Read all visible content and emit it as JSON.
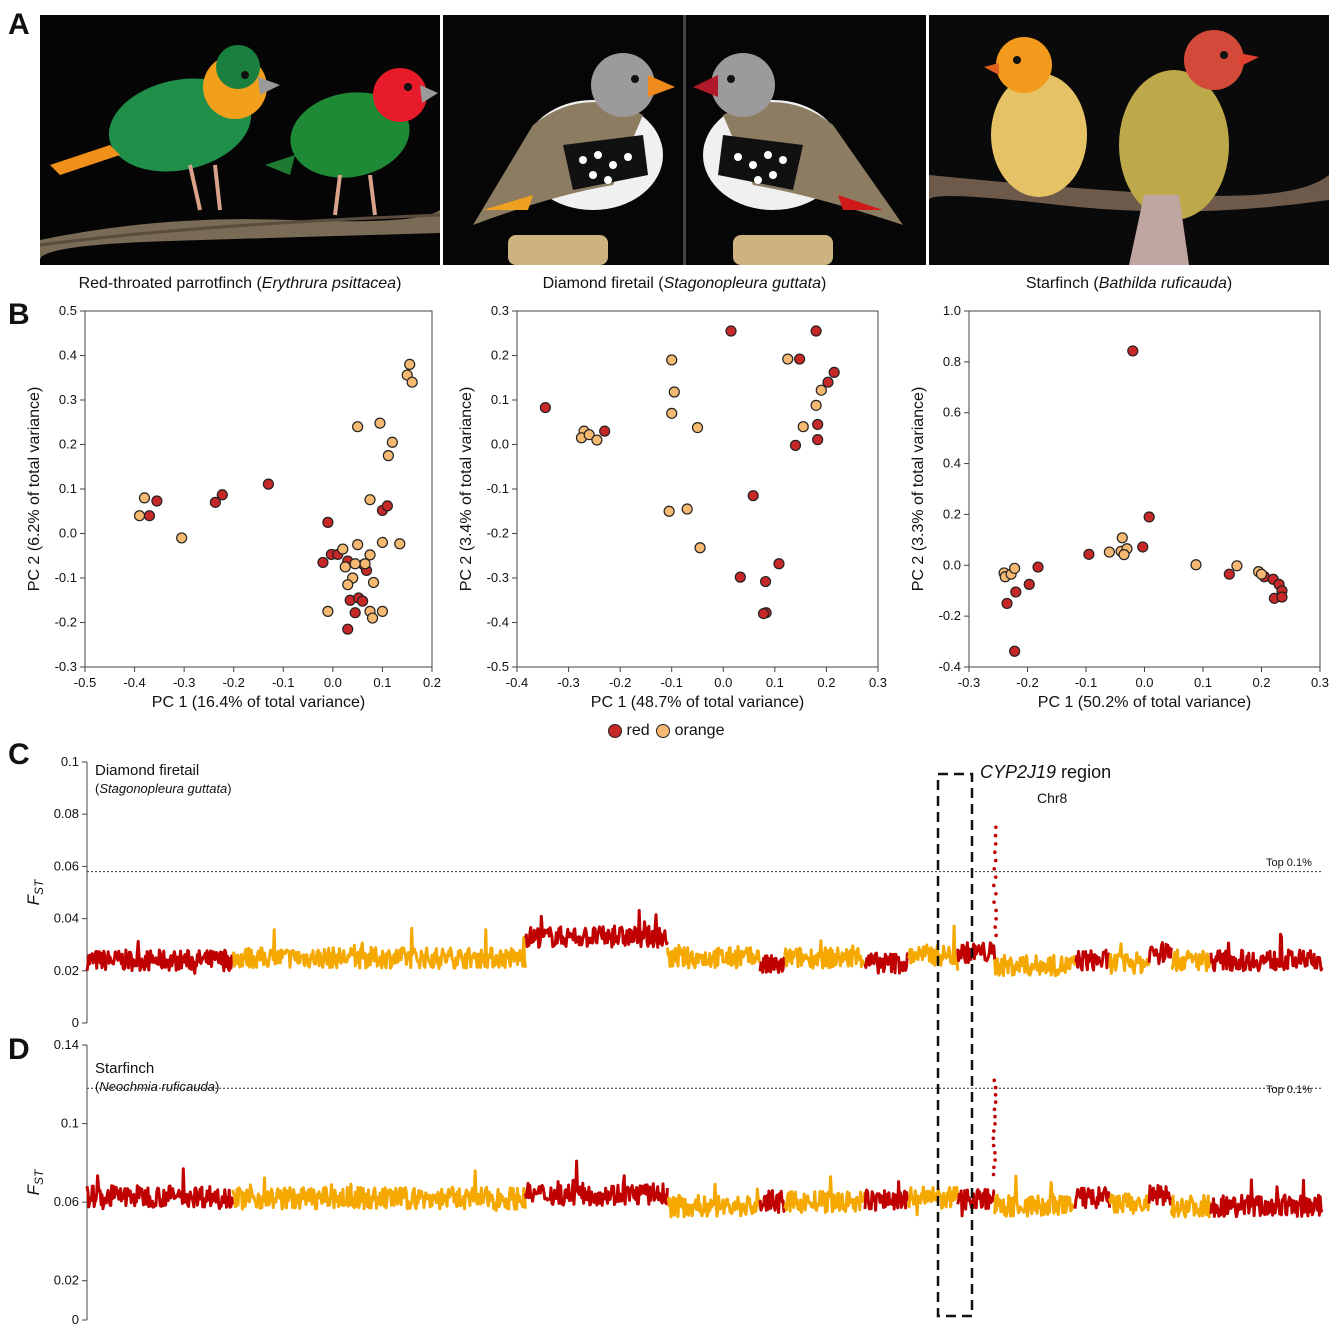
{
  "panels": {
    "a": "A",
    "b": "B",
    "c": "C",
    "d": "D"
  },
  "species": [
    {
      "common": "Red-throated parrotfinch",
      "latin": "Erythrura psittacea"
    },
    {
      "common": "Diamond firetail",
      "latin": "Stagonopleura guttata"
    },
    {
      "common": "Starfinch",
      "latin": "Bathilda ruficauda"
    }
  ],
  "legend": {
    "red_label": "red",
    "orange_label": "orange"
  },
  "colors": {
    "red": "#c62828",
    "orange": "#f5b971",
    "track_red": "#c00000",
    "track_orange": "#f5a800",
    "point_edge": "#222222"
  },
  "chart_data": [
    {
      "type": "scatter",
      "title": "",
      "xlabel": "PC 1 (16.4% of total variance)",
      "ylabel": "PC 2 (6.2% of total variance)",
      "xlim": [
        -0.5,
        0.2
      ],
      "ylim": [
        -0.3,
        0.5
      ],
      "xticks": [
        -0.5,
        -0.4,
        -0.3,
        -0.2,
        -0.1,
        0.0,
        0.1,
        0.2
      ],
      "yticks": [
        -0.3,
        -0.2,
        -0.1,
        0.0,
        0.1,
        0.2,
        0.3,
        0.4,
        0.5
      ],
      "xtick_labels": [
        "-0.5",
        "-0.4",
        "-0.3",
        "-0.2",
        "-0.1",
        "0.0",
        "0.1",
        "0.2"
      ],
      "ytick_labels": [
        "-0.3",
        "-0.2",
        "-0.1",
        "0.0",
        "0.1",
        "0.2",
        "0.3",
        "0.4",
        "0.5"
      ],
      "grid": false,
      "series": [
        {
          "name": "red",
          "points": [
            [
              -0.355,
              0.073
            ],
            [
              -0.37,
              0.04
            ],
            [
              -0.237,
              0.07
            ],
            [
              -0.223,
              0.087
            ],
            [
              -0.13,
              0.111
            ],
            [
              -0.01,
              0.025
            ],
            [
              -0.02,
              -0.065
            ],
            [
              -0.003,
              -0.047
            ],
            [
              0.01,
              -0.047
            ],
            [
              0.03,
              -0.062
            ],
            [
              0.062,
              -0.07
            ],
            [
              0.068,
              -0.083
            ],
            [
              0.035,
              -0.15
            ],
            [
              0.052,
              -0.145
            ],
            [
              0.06,
              -0.152
            ],
            [
              0.045,
              -0.178
            ],
            [
              0.03,
              -0.215
            ],
            [
              0.1,
              0.052
            ],
            [
              0.11,
              0.062
            ]
          ]
        },
        {
          "name": "orange",
          "points": [
            [
              -0.38,
              0.08
            ],
            [
              -0.39,
              0.04
            ],
            [
              -0.305,
              -0.01
            ],
            [
              0.15,
              0.356
            ],
            [
              0.16,
              0.34
            ],
            [
              0.155,
              0.38
            ],
            [
              0.05,
              0.24
            ],
            [
              0.095,
              0.248
            ],
            [
              0.12,
              0.205
            ],
            [
              0.112,
              0.175
            ],
            [
              0.075,
              0.076
            ],
            [
              0.135,
              -0.023
            ],
            [
              0.1,
              -0.02
            ],
            [
              0.02,
              -0.035
            ],
            [
              0.05,
              -0.025
            ],
            [
              0.075,
              -0.048
            ],
            [
              0.045,
              -0.068
            ],
            [
              0.065,
              -0.068
            ],
            [
              0.04,
              -0.1
            ],
            [
              0.025,
              -0.075
            ],
            [
              0.082,
              -0.11
            ],
            [
              0.03,
              -0.115
            ],
            [
              0.075,
              -0.175
            ],
            [
              0.1,
              -0.175
            ],
            [
              0.08,
              -0.19
            ],
            [
              -0.01,
              -0.175
            ]
          ]
        }
      ]
    },
    {
      "type": "scatter",
      "title": "",
      "xlabel": "PC 1 (48.7% of total variance)",
      "ylabel": "PC 2 (3.4% of total variance)",
      "xlim": [
        -0.4,
        0.3
      ],
      "ylim": [
        -0.5,
        0.3
      ],
      "xticks": [
        -0.4,
        -0.3,
        -0.2,
        -0.1,
        0.0,
        0.1,
        0.2,
        0.3
      ],
      "yticks": [
        -0.5,
        -0.4,
        -0.3,
        -0.2,
        -0.1,
        0.0,
        0.1,
        0.2,
        0.3
      ],
      "xtick_labels": [
        "-0.4",
        "-0.3",
        "-0.2",
        "-0.1",
        "0.0",
        "0.1",
        "0.2",
        "0.3"
      ],
      "ytick_labels": [
        "-0.5",
        "-0.4",
        "-0.3",
        "-0.2",
        "-0.1",
        "0.0",
        "0.1",
        "0.2",
        "0.3"
      ],
      "grid": false,
      "series": [
        {
          "name": "red",
          "points": [
            [
              -0.345,
              0.083
            ],
            [
              -0.23,
              0.03
            ],
            [
              0.015,
              0.255
            ],
            [
              0.18,
              0.255
            ],
            [
              0.148,
              0.192
            ],
            [
              0.215,
              0.162
            ],
            [
              0.203,
              0.14
            ],
            [
              0.183,
              0.045
            ],
            [
              0.183,
              0.011
            ],
            [
              0.14,
              -0.002
            ],
            [
              0.058,
              -0.115
            ],
            [
              0.033,
              -0.298
            ],
            [
              0.108,
              -0.268
            ],
            [
              0.082,
              -0.308
            ],
            [
              0.083,
              -0.378
            ],
            [
              0.078,
              -0.38
            ]
          ]
        },
        {
          "name": "orange",
          "points": [
            [
              -0.27,
              0.03
            ],
            [
              -0.275,
              0.015
            ],
            [
              -0.26,
              0.022
            ],
            [
              -0.245,
              0.01
            ],
            [
              -0.1,
              0.19
            ],
            [
              -0.095,
              0.118
            ],
            [
              -0.1,
              0.07
            ],
            [
              -0.05,
              0.038
            ],
            [
              -0.105,
              -0.15
            ],
            [
              -0.07,
              -0.145
            ],
            [
              -0.045,
              -0.232
            ],
            [
              0.125,
              0.192
            ],
            [
              0.19,
              0.122
            ],
            [
              0.18,
              0.088
            ],
            [
              0.155,
              0.04
            ]
          ]
        }
      ]
    },
    {
      "type": "scatter",
      "title": "",
      "xlabel": "PC 1 (50.2% of total variance)",
      "ylabel": "PC 2 (3.3% of total variance)",
      "xlim": [
        -0.3,
        0.3
      ],
      "ylim": [
        -0.4,
        1.0
      ],
      "xticks": [
        -0.3,
        -0.2,
        -0.1,
        0.0,
        0.1,
        0.2,
        0.3
      ],
      "yticks": [
        -0.4,
        -0.2,
        0.0,
        0.2,
        0.4,
        0.6,
        0.8,
        1.0
      ],
      "xtick_labels": [
        "-0.3",
        "-0.2",
        "-0.1",
        "0.0",
        "0.1",
        "0.2",
        "0.3"
      ],
      "ytick_labels": [
        "-0.4",
        "-0.2",
        "0.0",
        "0.2",
        "0.4",
        "0.6",
        "0.8",
        "1.0"
      ],
      "grid": false,
      "series": [
        {
          "name": "red",
          "points": [
            [
              -0.02,
              0.843
            ],
            [
              0.008,
              0.19
            ],
            [
              -0.003,
              0.072
            ],
            [
              -0.095,
              0.043
            ],
            [
              -0.182,
              -0.007
            ],
            [
              -0.197,
              -0.075
            ],
            [
              -0.22,
              -0.105
            ],
            [
              -0.235,
              -0.15
            ],
            [
              -0.222,
              -0.338
            ],
            [
              0.145,
              -0.035
            ],
            [
              0.205,
              -0.045
            ],
            [
              0.22,
              -0.055
            ],
            [
              0.23,
              -0.075
            ],
            [
              0.235,
              -0.1
            ],
            [
              0.222,
              -0.13
            ],
            [
              0.235,
              -0.125
            ]
          ]
        },
        {
          "name": "orange",
          "points": [
            [
              -0.24,
              -0.03
            ],
            [
              -0.238,
              -0.045
            ],
            [
              -0.228,
              -0.035
            ],
            [
              -0.222,
              -0.012
            ],
            [
              -0.038,
              0.108
            ],
            [
              -0.04,
              0.055
            ],
            [
              -0.03,
              0.065
            ],
            [
              -0.06,
              0.052
            ],
            [
              -0.035,
              0.042
            ],
            [
              0.088,
              0.002
            ],
            [
              0.158,
              -0.002
            ],
            [
              0.195,
              -0.025
            ],
            [
              0.2,
              -0.035
            ]
          ]
        }
      ]
    },
    {
      "type": "line",
      "title": "Diamond firetail",
      "subtitle": "(Stagonopleura guttata)",
      "ylabel": "FST",
      "ylim": [
        0,
        0.1
      ],
      "yticks": [
        0,
        0.02,
        0.04,
        0.06,
        0.08,
        0.1
      ],
      "ytick_labels": [
        "0",
        "0.02",
        "0.04",
        "0.06",
        "0.08",
        "0.1"
      ],
      "threshold": 0.058,
      "threshold_label": "Top 0.1%",
      "region_label": "CYP2J19",
      "region_label_suffix": " region",
      "region_chr": "Chr8",
      "baseline": 0.025,
      "segments": [
        {
          "color": "red",
          "start": 0.0,
          "end": 0.118,
          "level": 0.024
        },
        {
          "color": "orange",
          "start": 0.118,
          "end": 0.355,
          "level": 0.025
        },
        {
          "color": "red",
          "start": 0.355,
          "end": 0.47,
          "level": 0.033
        },
        {
          "color": "orange",
          "start": 0.47,
          "end": 0.545,
          "level": 0.025
        },
        {
          "color": "red",
          "start": 0.545,
          "end": 0.565,
          "level": 0.022
        },
        {
          "color": "orange",
          "start": 0.565,
          "end": 0.63,
          "level": 0.025
        },
        {
          "color": "red",
          "start": 0.63,
          "end": 0.665,
          "level": 0.023
        },
        {
          "color": "orange",
          "start": 0.665,
          "end": 0.705,
          "level": 0.026
        },
        {
          "color": "red",
          "start": 0.705,
          "end": 0.735,
          "level": 0.027
        },
        {
          "color": "orange",
          "start": 0.735,
          "end": 0.8,
          "level": 0.022
        },
        {
          "color": "red",
          "start": 0.8,
          "end": 0.828,
          "level": 0.024
        },
        {
          "color": "orange",
          "start": 0.828,
          "end": 0.86,
          "level": 0.023
        },
        {
          "color": "red",
          "start": 0.86,
          "end": 0.878,
          "level": 0.027
        },
        {
          "color": "orange",
          "start": 0.878,
          "end": 0.91,
          "level": 0.024
        },
        {
          "color": "red",
          "start": 0.91,
          "end": 1.0,
          "level": 0.024
        }
      ],
      "peak": {
        "position": 0.735,
        "value": 0.075
      }
    },
    {
      "type": "line",
      "title": "Starfinch",
      "subtitle": "(Neochmia ruficauda)",
      "ylabel": "FST",
      "ylim": [
        0,
        0.14
      ],
      "yticks": [
        0,
        0.02,
        0.06,
        0.1,
        0.14
      ],
      "ytick_labels": [
        "0",
        "0.02",
        "0.06",
        "0.1",
        "0.14"
      ],
      "threshold": 0.118,
      "threshold_label": "Top 0.1%",
      "segments": [
        {
          "color": "red",
          "start": 0.0,
          "end": 0.118,
          "level": 0.063
        },
        {
          "color": "orange",
          "start": 0.118,
          "end": 0.355,
          "level": 0.062
        },
        {
          "color": "red",
          "start": 0.355,
          "end": 0.47,
          "level": 0.064
        },
        {
          "color": "orange",
          "start": 0.47,
          "end": 0.545,
          "level": 0.058
        },
        {
          "color": "red",
          "start": 0.545,
          "end": 0.565,
          "level": 0.06
        },
        {
          "color": "orange",
          "start": 0.565,
          "end": 0.63,
          "level": 0.06
        },
        {
          "color": "red",
          "start": 0.63,
          "end": 0.665,
          "level": 0.061
        },
        {
          "color": "orange",
          "start": 0.665,
          "end": 0.705,
          "level": 0.062
        },
        {
          "color": "red",
          "start": 0.705,
          "end": 0.735,
          "level": 0.062
        },
        {
          "color": "orange",
          "start": 0.735,
          "end": 0.8,
          "level": 0.058
        },
        {
          "color": "red",
          "start": 0.8,
          "end": 0.828,
          "level": 0.062
        },
        {
          "color": "orange",
          "start": 0.828,
          "end": 0.86,
          "level": 0.059
        },
        {
          "color": "red",
          "start": 0.86,
          "end": 0.878,
          "level": 0.063
        },
        {
          "color": "orange",
          "start": 0.878,
          "end": 0.91,
          "level": 0.058
        },
        {
          "color": "red",
          "start": 0.91,
          "end": 1.0,
          "level": 0.058
        }
      ],
      "peak": {
        "position": 0.735,
        "value": 0.122
      }
    }
  ]
}
